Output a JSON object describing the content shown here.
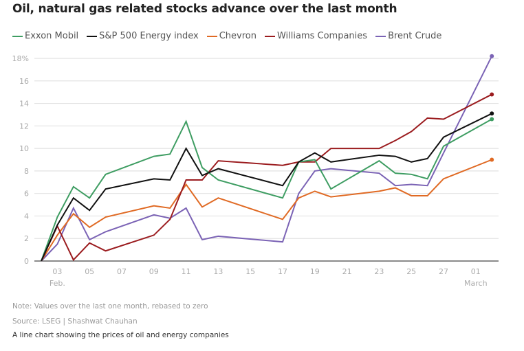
{
  "chart_data": {
    "type": "line",
    "title": "Oil, natural gas related stocks advance over the last month",
    "xlabel": "",
    "ylabel": "",
    "ylim": [
      0,
      18
    ],
    "yticks": [
      0,
      2,
      4,
      6,
      8,
      10,
      12,
      14,
      16,
      18
    ],
    "ytick_labels": [
      "0",
      "2",
      "4",
      "6",
      "8",
      "10",
      "12",
      "14",
      "16",
      "18%"
    ],
    "grid": true,
    "legend_position": "top-left",
    "x": [
      "Feb 02",
      "Feb 03",
      "Feb 04",
      "Feb 05",
      "Feb 06",
      "Feb 09",
      "Feb 10",
      "Feb 11",
      "Feb 12",
      "Feb 13",
      "Feb 17",
      "Feb 18",
      "Feb 19",
      "Feb 20",
      "Feb 23",
      "Feb 24",
      "Feb 25",
      "Feb 26",
      "Feb 27",
      "Mar 02"
    ],
    "x_day_index": [
      0,
      1,
      2,
      3,
      4,
      7,
      8,
      9,
      10,
      11,
      15,
      16,
      17,
      18,
      21,
      22,
      23,
      24,
      25,
      28
    ],
    "xticks": [
      {
        "label": "03",
        "sub": "Feb.",
        "day_index": 1
      },
      {
        "label": "05",
        "sub": "",
        "day_index": 3
      },
      {
        "label": "07",
        "sub": "",
        "day_index": 5
      },
      {
        "label": "09",
        "sub": "",
        "day_index": 7
      },
      {
        "label": "11",
        "sub": "",
        "day_index": 9
      },
      {
        "label": "13",
        "sub": "",
        "day_index": 11
      },
      {
        "label": "15",
        "sub": "",
        "day_index": 13
      },
      {
        "label": "17",
        "sub": "",
        "day_index": 15
      },
      {
        "label": "19",
        "sub": "",
        "day_index": 17
      },
      {
        "label": "21",
        "sub": "",
        "day_index": 19
      },
      {
        "label": "23",
        "sub": "",
        "day_index": 21
      },
      {
        "label": "25",
        "sub": "",
        "day_index": 23
      },
      {
        "label": "27",
        "sub": "",
        "day_index": 25
      },
      {
        "label": "01",
        "sub": "March",
        "day_index": 27
      }
    ],
    "series": [
      {
        "name": "Exxon Mobil",
        "color": "#3e9d62",
        "values": [
          0,
          3.9,
          6.6,
          5.6,
          7.7,
          9.3,
          9.5,
          12.4,
          8.3,
          7.2,
          5.6,
          8.8,
          9.0,
          6.4,
          8.9,
          7.8,
          7.7,
          7.3,
          10.2,
          12.6
        ]
      },
      {
        "name": "S&P 500 Energy index",
        "color": "#111111",
        "values": [
          0,
          3.2,
          5.6,
          4.5,
          6.4,
          7.3,
          7.2,
          10.0,
          7.6,
          8.2,
          6.7,
          8.8,
          9.6,
          8.8,
          9.4,
          9.3,
          8.8,
          9.1,
          11.0,
          13.1
        ]
      },
      {
        "name": "Chevron",
        "color": "#e06a24",
        "values": [
          0,
          2.3,
          4.2,
          3.0,
          3.9,
          4.9,
          4.7,
          6.8,
          4.8,
          5.6,
          3.7,
          5.6,
          6.2,
          5.7,
          6.2,
          6.5,
          5.8,
          5.8,
          7.3,
          9.0
        ]
      },
      {
        "name": "Williams Companies",
        "color": "#9b1c1f",
        "values": [
          0,
          3.1,
          0.1,
          1.6,
          0.9,
          2.3,
          3.7,
          7.2,
          7.2,
          8.9,
          8.5,
          8.8,
          8.8,
          10.0,
          10.0,
          10.7,
          11.5,
          12.7,
          12.6,
          14.8
        ]
      },
      {
        "name": "Brent Crude",
        "color": "#7b63b5",
        "values": [
          0,
          1.5,
          4.7,
          1.9,
          2.6,
          4.1,
          3.8,
          4.7,
          1.9,
          2.2,
          1.7,
          6.0,
          8.0,
          8.2,
          7.8,
          6.7,
          6.8,
          6.7,
          9.6,
          18.2
        ]
      }
    ]
  },
  "footer": {
    "note": "Note: Values over the last one month, rebased to zero",
    "source": "Source: LSEG | Shashwat Chauhan",
    "description": "A line chart showing the prices of oil and energy companies"
  }
}
